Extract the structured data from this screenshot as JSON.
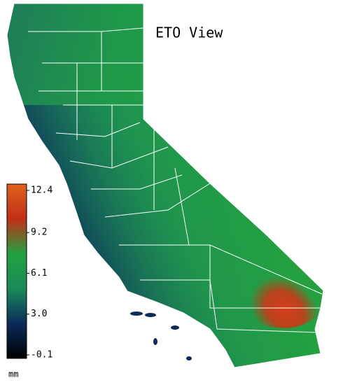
{
  "title": "ETO View",
  "legend": {
    "ticks": [
      12.4,
      9.2,
      6.1,
      {
        "value": 3,
        "label": "3.0"
      },
      -0.1
    ],
    "range": [
      -0.1,
      12.4
    ],
    "unit": "mm",
    "colors": [
      "#000000",
      "#0c2a5a",
      "#1a8a5a",
      "#22a040",
      "#c03018",
      "#e0601c"
    ]
  }
}
